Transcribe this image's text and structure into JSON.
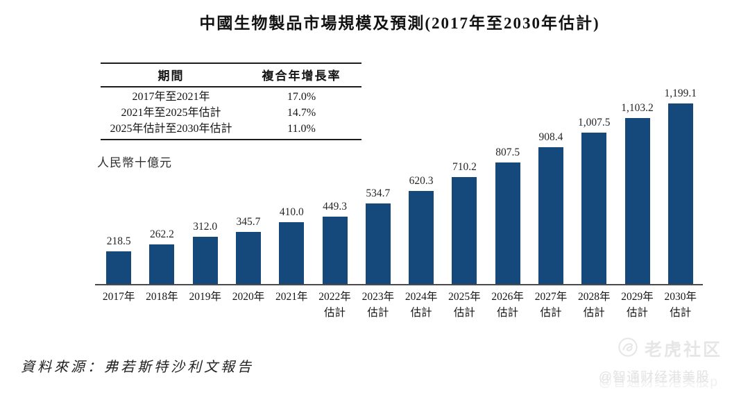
{
  "page": {
    "title": "中國生物製品市場規模及預測(2017年至2030年估計)",
    "unit_label": "人民幣十億元",
    "source": "資料來源：弗若斯特沙利文報告"
  },
  "cagr_table": {
    "headers": {
      "period": "期間",
      "cagr": "複合年增長率"
    },
    "rows": [
      {
        "period": "2017年至2021年",
        "cagr": "17.0%"
      },
      {
        "period": "2021年至2025年估計",
        "cagr": "14.7%"
      },
      {
        "period": "2025年估計至2030年估計",
        "cagr": "11.0%"
      }
    ]
  },
  "chart_data": {
    "type": "bar",
    "title": "中國生物製品市場規模及預測(2017年至2030年估計)",
    "ylabel": "人民幣十億元",
    "xlabel": "",
    "categories": [
      "2017年",
      "2018年",
      "2019年",
      "2020年",
      "2021年",
      "2022年估計",
      "2023年估計",
      "2024年估計",
      "2025年估計",
      "2026年估計",
      "2027年估計",
      "2028年估計",
      "2029年估計",
      "2030年估計"
    ],
    "values": [
      218.5,
      262.2,
      312.0,
      345.7,
      410.0,
      449.3,
      534.7,
      620.3,
      710.2,
      807.5,
      908.4,
      1007.5,
      1103.2,
      1199.1
    ],
    "value_labels": [
      "218.5",
      "262.2",
      "312.0",
      "345.7",
      "410.0",
      "449.3",
      "534.7",
      "620.3",
      "710.2",
      "807.5",
      "908.4",
      "1,007.5",
      "1,103.2",
      "1,199.1"
    ],
    "cagr_annotations": [
      {
        "period": "2017年至2021年",
        "cagr_pct": 17.0
      },
      {
        "period": "2021年至2025年估計",
        "cagr_pct": 14.7
      },
      {
        "period": "2025年估計至2030年估計",
        "cagr_pct": 11.0
      }
    ],
    "bar_color": "#15497c",
    "ylim": [
      0,
      1260
    ],
    "grid": false,
    "legend_position": "none"
  },
  "watermark": {
    "logo_icon": "tiger-circle-icon",
    "name": "老虎社区",
    "handle": "@智通财经港美股",
    "handle_ghost": "@智通财经港美股p",
    "color": "#e6e6e6"
  }
}
